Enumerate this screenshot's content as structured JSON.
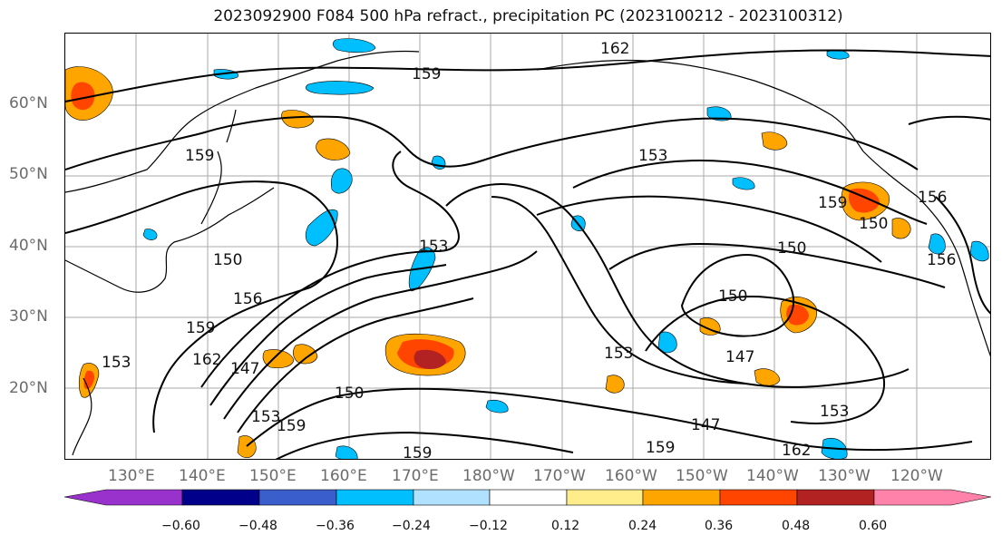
{
  "title": "2023092900 F084 500 hPa refract., precipitation PC (2023100212 - 2023100312)",
  "lat_labels": [
    "60°N",
    "50°N",
    "40°N",
    "30°N",
    "20°N"
  ],
  "lon_labels": [
    "130°E",
    "140°E",
    "150°E",
    "160°E",
    "170°E",
    "180°W",
    "170°W",
    "160°W",
    "150°W",
    "140°W",
    "130°W",
    "120°W"
  ],
  "contour_labels": [
    "162",
    "159",
    "159",
    "153",
    "150",
    "150",
    "156",
    "159",
    "162",
    "147",
    "153",
    "150",
    "153",
    "147",
    "150",
    "153",
    "159",
    "159",
    "147",
    "159",
    "162",
    "153",
    "159",
    "156",
    "156",
    "153",
    "150"
  ],
  "colorbar": {
    "colors": [
      "#9932cc",
      "#00008b",
      "#3a5fcd",
      "#00bfff",
      "#b0e2ff",
      "#ffffff",
      "#ffec8b",
      "#ffa500",
      "#ff4500",
      "#b22222",
      "#ff82ab"
    ],
    "tick_labels": [
      "−0.60",
      "−0.48",
      "−0.36",
      "−0.24",
      "−0.12",
      "0.12",
      "0.24",
      "0.36",
      "0.48",
      "0.60"
    ]
  }
}
